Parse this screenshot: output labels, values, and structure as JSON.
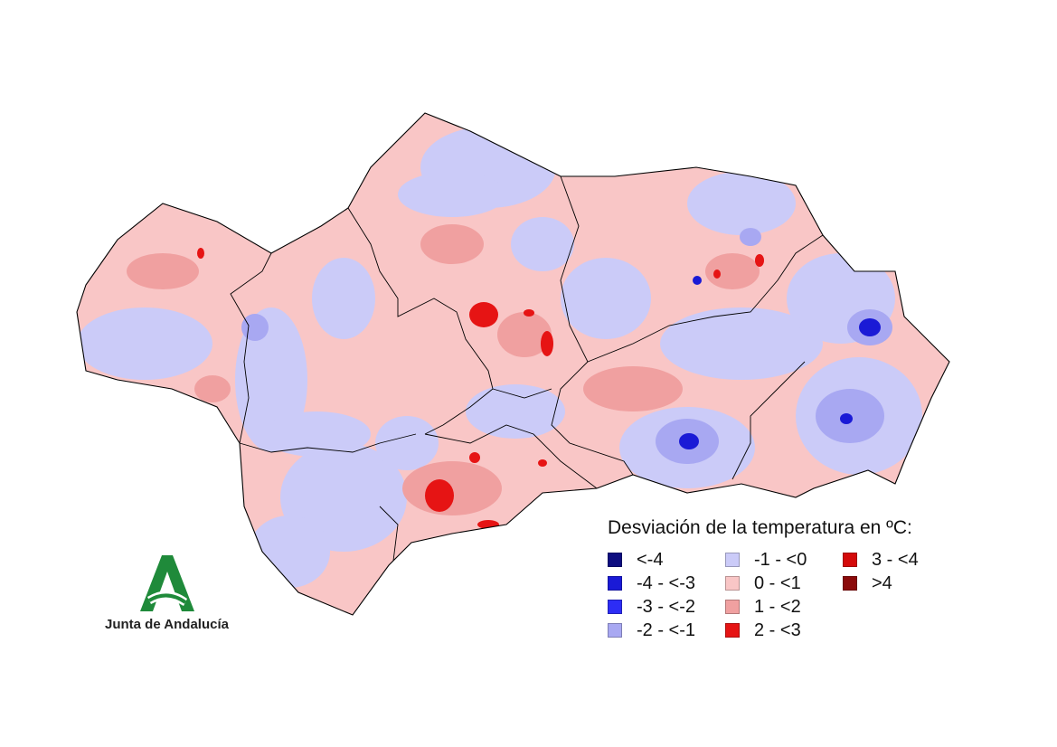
{
  "legend": {
    "title": "Desviación de la temperatura en ºC:",
    "items": [
      {
        "label": "<-4",
        "color": "#0d0d80"
      },
      {
        "label": "-4 - <-3",
        "color": "#1a1ad6"
      },
      {
        "label": "-3 - <-2",
        "color": "#2d2df5"
      },
      {
        "label": "-2 - <-1",
        "color": "#a8a8f2"
      },
      {
        "label": "-1 - <0",
        "color": "#cbcbf8"
      },
      {
        "label": "0 - <1",
        "color": "#f9c6c6"
      },
      {
        "label": "1 - <2",
        "color": "#f0a0a0"
      },
      {
        "label": "2 - <3",
        "color": "#e61414"
      },
      {
        "label": "3 - <4",
        "color": "#d40a0a"
      },
      {
        "label": ">4",
        "color": "#8b0a0a"
      }
    ]
  },
  "logo": {
    "text": "Junta de Andalucía",
    "icon": "junta-andalucia-logo",
    "color": "#1f8a3a"
  },
  "map": {
    "base_color": "#f9c6c6",
    "border_color": "#000000"
  }
}
